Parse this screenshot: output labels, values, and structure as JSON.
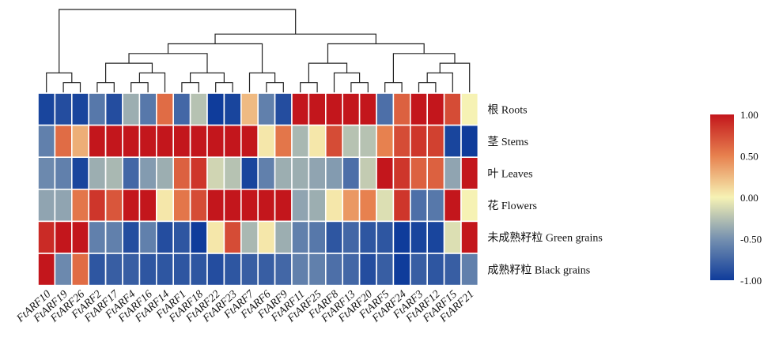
{
  "chart_data": {
    "type": "heatmap",
    "columns": [
      "FtARF10",
      "FtARF19",
      "FtARF26",
      "FtARF2",
      "FtARF17",
      "FtARF4",
      "FtARF16",
      "FtARF14",
      "FtARF1",
      "FtARF18",
      "FtARF22",
      "FtARF23",
      "FtARF7",
      "FtARF6",
      "FtARF9",
      "FtARF11",
      "FtARF25",
      "FtARF8",
      "FtARF13",
      "FtARF20",
      "FtARF5",
      "FtARF24",
      "FtARF3",
      "FtARF12",
      "FtARF15",
      "FtARF21"
    ],
    "rows": [
      "根 Roots",
      "茎 Stems",
      "叶 Leaves",
      "花 Flowers",
      "未成熟籽粒 Green grains",
      "成熟籽粒 Black grains"
    ],
    "values": [
      [
        -0.95,
        -0.9,
        -0.95,
        -0.65,
        -0.9,
        -0.35,
        -0.65,
        0.6,
        -0.75,
        -0.25,
        -1.0,
        -0.95,
        0.25,
        -0.6,
        -0.9,
        1.0,
        1.0,
        1.0,
        1.0,
        1.0,
        -0.7,
        0.65,
        1.0,
        1.0,
        0.75,
        0.0
      ],
      [
        -0.6,
        0.6,
        0.3,
        1.0,
        1.0,
        1.0,
        1.0,
        1.0,
        1.0,
        1.0,
        1.0,
        1.0,
        1.0,
        0.05,
        0.55,
        -0.3,
        0.05,
        0.75,
        -0.25,
        -0.25,
        0.5,
        0.75,
        0.85,
        0.8,
        -0.95,
        -1.0
      ],
      [
        -0.55,
        -0.6,
        -0.95,
        -0.35,
        -0.3,
        -0.75,
        -0.45,
        -0.35,
        0.65,
        0.85,
        -0.15,
        -0.25,
        -0.95,
        -0.6,
        -0.35,
        -0.35,
        -0.4,
        -0.45,
        -0.7,
        -0.2,
        1.0,
        0.85,
        0.65,
        0.65,
        -0.4,
        1.0
      ],
      [
        -0.4,
        -0.4,
        0.55,
        0.85,
        0.7,
        1.0,
        1.0,
        0.05,
        0.55,
        0.75,
        1.0,
        1.0,
        1.0,
        1.0,
        1.0,
        -0.4,
        -0.35,
        0.05,
        0.4,
        0.5,
        -0.1,
        0.85,
        -0.7,
        -0.65,
        1.0,
        0.0
      ],
      [
        0.9,
        1.0,
        1.0,
        -0.6,
        -0.6,
        -0.9,
        -0.6,
        -0.9,
        -0.85,
        -1.0,
        0.05,
        0.75,
        -0.3,
        0.05,
        -0.35,
        -0.6,
        -0.65,
        -0.85,
        -0.75,
        -0.85,
        -0.85,
        -1.0,
        -0.95,
        -0.95,
        -0.1,
        1.0
      ],
      [
        1.0,
        -0.55,
        0.6,
        -0.85,
        -0.8,
        -0.8,
        -0.85,
        -0.85,
        -0.85,
        -0.85,
        -0.9,
        -0.85,
        -0.8,
        -0.8,
        -0.75,
        -0.6,
        -0.6,
        -0.7,
        -0.75,
        -0.9,
        -0.8,
        -1.0,
        -0.8,
        -0.85,
        -0.8,
        -0.6
      ]
    ],
    "dendrogram": [
      [
        "FtARF10",
        [
          "FtARF19",
          "FtARF26"
        ]
      ],
      [
        [
          [
            [
              [
                "FtARF2",
                "FtARF17"
              ],
              [
                [
                  "FtARF4",
                  "FtARF16"
                ],
                "FtARF14"
              ]
            ],
            [
              [
                "FtARF1",
                "FtARF18"
              ],
              [
                "FtARF22",
                "FtARF23"
              ]
            ]
          ],
          [
            "FtARF7",
            [
              "FtARF6",
              "FtARF9"
            ]
          ]
        ],
        [
          [
            [
              "FtARF11",
              "FtARF25"
            ],
            [
              "FtARF8",
              [
                "FtARF13",
                "FtARF20"
              ]
            ]
          ],
          [
            [
              "FtARF5",
              "FtARF24"
            ],
            [
              [
                [
                  "FtARF3",
                  "FtARF12"
                ],
                "FtARF15"
              ],
              "FtARF21"
            ]
          ]
        ]
      ]
    ],
    "colorscale": {
      "min": -1.0,
      "max": 1.0,
      "stops": [
        {
          "value": -1.0,
          "color": "#0f3c9b"
        },
        {
          "value": -0.5,
          "color": "#7691b0"
        },
        {
          "value": 0.0,
          "color": "#f6f2b4"
        },
        {
          "value": 0.5,
          "color": "#e7814f"
        },
        {
          "value": 1.0,
          "color": "#c3161c"
        }
      ],
      "ticks": [
        "1.00",
        "0.50",
        "0.00",
        "-0.50",
        "-1.00"
      ]
    }
  }
}
